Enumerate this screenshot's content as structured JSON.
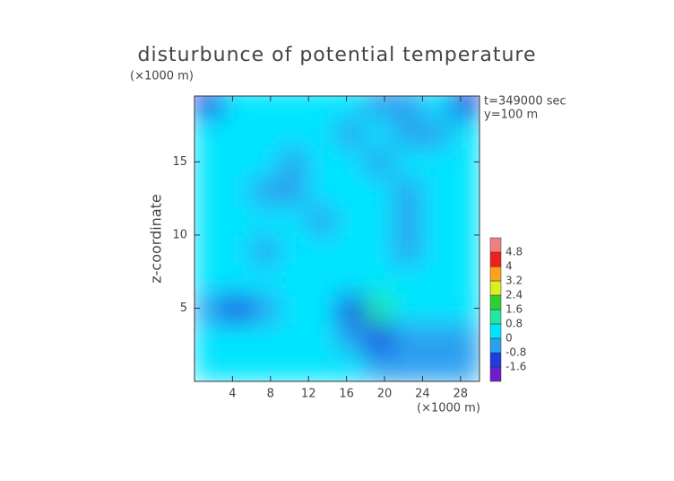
{
  "chart_data": {
    "type": "contour",
    "title": "disturbunce of potential temperature",
    "y_unit": "(×1000 m)",
    "x_unit": "(×1000 m)",
    "y_label": "z-coordinate",
    "annotations": [
      "t=349000 sec",
      "y=100 m"
    ],
    "xlim": [
      0,
      30
    ],
    "ylim": [
      0,
      19.5
    ],
    "xticks": [
      4,
      8,
      12,
      16,
      20,
      24,
      28
    ],
    "yticks": [
      5,
      10,
      15
    ],
    "x": [
      1.5,
      4.5,
      7.5,
      10.5,
      13.5,
      16.5,
      19.5,
      22.5,
      25.5,
      28.5
    ],
    "y": [
      1,
      3,
      5,
      7,
      9,
      11,
      13,
      15,
      17,
      19
    ],
    "field": [
      [
        0.3,
        0.5,
        0.5,
        0.4,
        0.2,
        0,
        -0.5,
        -0.8,
        -0.8,
        -0.6
      ],
      [
        0.2,
        0.4,
        0.5,
        0.3,
        0.1,
        -0.3,
        -1.0,
        -0.7,
        -0.6,
        -0.4
      ],
      [
        -0.7,
        -1.1,
        -0.3,
        0.6,
        0.7,
        -1.3,
        0.9,
        0.3,
        0.1,
        0
      ],
      [
        0,
        0.1,
        0,
        0.2,
        0.3,
        0.3,
        0.2,
        0,
        0.1,
        0.2
      ],
      [
        0.2,
        0.3,
        -0.4,
        0.2,
        0.1,
        0.2,
        0.1,
        -0.8,
        0.2,
        0.2
      ],
      [
        0.2,
        0.2,
        0.3,
        0.2,
        -0.5,
        0.2,
        0.3,
        -0.7,
        0.2,
        0.3
      ],
      [
        0.1,
        0.2,
        -0.3,
        -0.5,
        0.1,
        0.3,
        0,
        -0.2,
        0.3,
        0.2
      ],
      [
        0.2,
        0.3,
        0.1,
        -0.2,
        0.3,
        0.2,
        -0.5,
        0,
        0.3,
        0.2
      ],
      [
        0.2,
        0.2,
        0.3,
        0.2,
        0.1,
        -0.5,
        0.2,
        -0.5,
        -0.3,
        0.2
      ],
      [
        -1.0,
        0,
        0.6,
        0.7,
        0.2,
        0,
        -0.4,
        -0.3,
        0,
        -1.0
      ]
    ],
    "levels": [
      -1.6,
      -0.8,
      0,
      0.8,
      1.6,
      2.4,
      3.2,
      4,
      4.8
    ],
    "colors": [
      "#6a1fc8",
      "#1e3ce0",
      "#2aa0f0",
      "#00e5ff",
      "#20e8a0",
      "#30d030",
      "#d8f020",
      "#ffa020",
      "#f02020",
      "#f08080"
    ]
  }
}
